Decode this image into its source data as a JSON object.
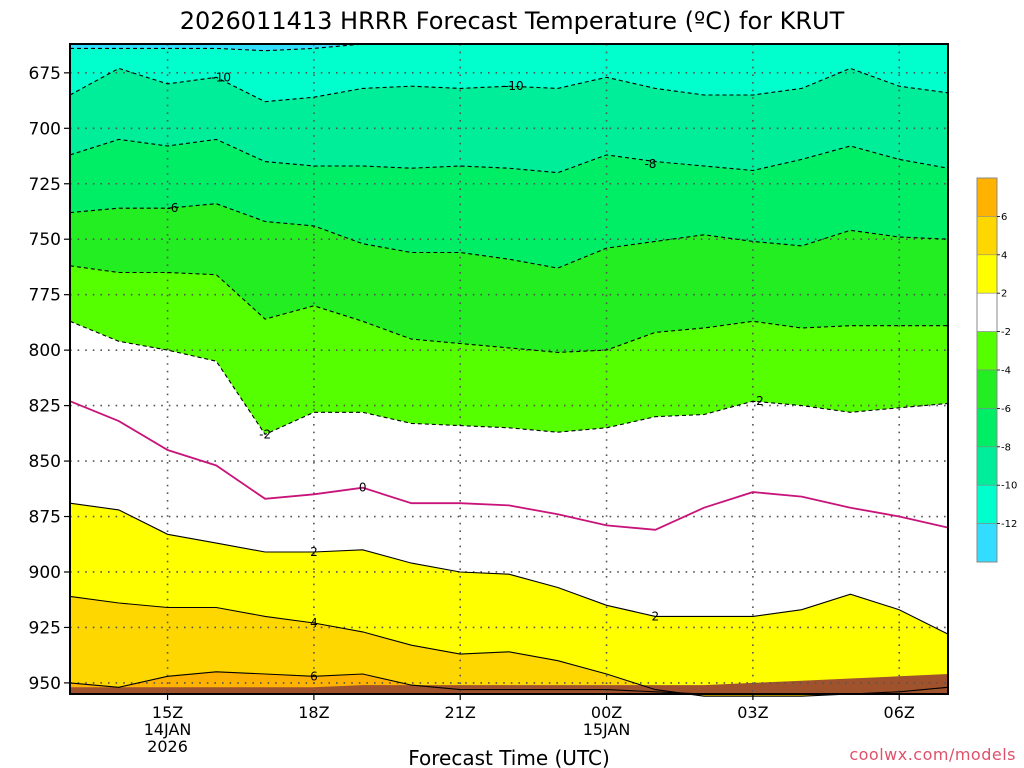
{
  "chart_data": {
    "type": "heatmap",
    "title": "2026011413 HRRR Forecast Temperature (ºC) for KRUT",
    "xlabel": "Forecast Time (UTC)",
    "ylabel": "",
    "y_ticks": [
      "675",
      "700",
      "725",
      "750",
      "775",
      "800",
      "825",
      "850",
      "875",
      "900",
      "925",
      "950"
    ],
    "y_range_hpa": [
      955,
      662
    ],
    "x_ticks": [
      {
        "hour": 15,
        "lines": [
          "15Z",
          "14JAN",
          "2026"
        ]
      },
      {
        "hour": 18,
        "lines": [
          "18Z"
        ]
      },
      {
        "hour": 21,
        "lines": [
          "21Z"
        ]
      },
      {
        "hour": 24,
        "lines": [
          "00Z",
          "15JAN"
        ]
      },
      {
        "hour": 27,
        "lines": [
          "03Z"
        ]
      },
      {
        "hour": 30,
        "lines": [
          "06Z"
        ]
      }
    ],
    "x_range_hour": [
      13,
      31
    ],
    "hours": [
      13,
      14,
      15,
      16,
      17,
      18,
      19,
      20,
      21,
      22,
      23,
      24,
      25,
      26,
      27,
      28,
      29,
      30,
      31
    ],
    "isotherms_hpa": {
      "-12": [
        664,
        664,
        664,
        664,
        665,
        664,
        662,
        662,
        662,
        662,
        662,
        662,
        662,
        662,
        662,
        662,
        662,
        662,
        662
      ],
      "-10": [
        685,
        673,
        680,
        677,
        688,
        686,
        682,
        681,
        682,
        681,
        682,
        677,
        682,
        685,
        685,
        682,
        673,
        681,
        684
      ],
      "-8": [
        712,
        705,
        708,
        705,
        715,
        717,
        717,
        718,
        717,
        718,
        720,
        712,
        715,
        717,
        719,
        714,
        708,
        714,
        718
      ],
      "-6": [
        738,
        736,
        736,
        734,
        742,
        744,
        752,
        756,
        756,
        759,
        763,
        754,
        751,
        748,
        751,
        753,
        746,
        749,
        750
      ],
      "-4": [
        762,
        765,
        765,
        766,
        786,
        780,
        787,
        795,
        797,
        799,
        801,
        800,
        792,
        790,
        787,
        790,
        789,
        789,
        789
      ],
      "-2": [
        787,
        796,
        800,
        805,
        838,
        828,
        828,
        833,
        834,
        835,
        837,
        835,
        830,
        829,
        823,
        825,
        828,
        826,
        824
      ],
      "0": [
        823,
        832,
        845,
        852,
        867,
        865,
        862,
        869,
        869,
        870,
        874,
        879,
        881,
        871,
        864,
        866,
        871,
        875,
        880
      ],
      "2": [
        869,
        872,
        883,
        887,
        891,
        891,
        890,
        896,
        900,
        901,
        907,
        915,
        920,
        920,
        920,
        917,
        910,
        917,
        928
      ],
      "4": [
        911,
        914,
        916,
        916,
        920,
        923,
        927,
        933,
        937,
        936,
        940,
        946,
        953,
        956,
        956,
        956,
        955,
        954,
        952
      ],
      "6": [
        950,
        952,
        947,
        945,
        946,
        947,
        946,
        951,
        953,
        953,
        953,
        953,
        954,
        955,
        955,
        955,
        955,
        955,
        955
      ]
    },
    "ground_hpa": [
      952,
      952,
      952,
      952,
      952,
      952,
      951,
      951,
      951,
      951,
      951,
      951,
      951,
      951,
      950,
      949,
      948,
      947,
      946
    ],
    "contour_labels": [
      {
        "text": "-10",
        "hour": 16.1,
        "hpa": 677
      },
      {
        "text": "-10",
        "hour": 22.1,
        "hpa": 681
      },
      {
        "text": "-8",
        "hour": 24.9,
        "hpa": 716
      },
      {
        "text": "-6",
        "hour": 15.1,
        "hpa": 736
      },
      {
        "text": "-2",
        "hour": 17.0,
        "hpa": 838
      },
      {
        "text": "-2",
        "hour": 27.1,
        "hpa": 823
      },
      {
        "text": "0",
        "hour": 19.0,
        "hpa": 862
      },
      {
        "text": "2",
        "hour": 18.0,
        "hpa": 891
      },
      {
        "text": "2",
        "hour": 25.0,
        "hpa": 920
      },
      {
        "text": "4",
        "hour": 18.0,
        "hpa": 923
      },
      {
        "text": "6",
        "hour": 18.0,
        "hpa": 947
      }
    ],
    "colorbar": {
      "colors": [
        "#ffb200",
        "#ffd700",
        "#ffff00",
        "#ffffff",
        "#55ff00",
        "#22ee22",
        "#00ee66",
        "#00ee99",
        "#00ffcc",
        "#33ddff"
      ],
      "labels": [
        "6",
        "4",
        "2",
        "-2",
        "-4",
        "-6",
        "-8",
        "-10",
        "-12"
      ]
    },
    "ground_color": "#a0522d",
    "fill_colors": {
      "lt_-12": "#33ddff",
      "-12_-10": "#00ffcc",
      "-10_-8": "#00ee99",
      "-8_-6": "#00ee66",
      "-6_-4": "#22ee22",
      "-4_-2": "#55ff00",
      "-2_2": "#ffffff",
      "2_4": "#ffff00",
      "4_6": "#ffd700",
      "gt_6": "#ffb200"
    },
    "grid": true
  },
  "credit": "coolwx.com/models"
}
